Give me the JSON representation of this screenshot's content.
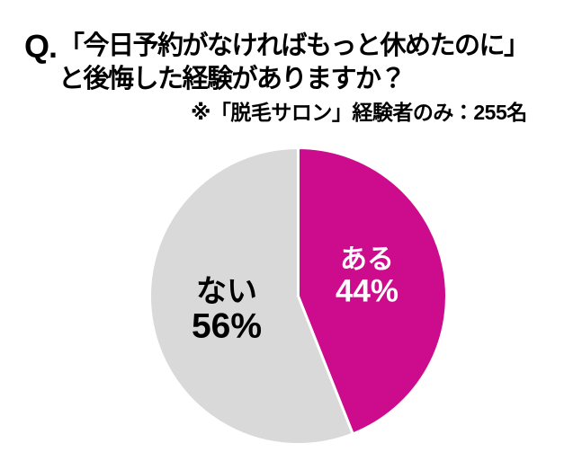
{
  "header": {
    "q_prefix": "Q.",
    "title_line1": "「今日予約がなければもっと休めたのに」",
    "title_line2": "と後悔した経験がありますか？",
    "note": "※「脱毛サロン」経験者のみ：255名"
  },
  "chart_data": {
    "type": "pie",
    "title": "Q.「今日予約がなければもっと休めたのに」と後悔した経験がありますか？",
    "note": "※「脱毛サロン」経験者のみ：255名",
    "sample_size": 255,
    "unit": "%",
    "start_angle_deg": 0,
    "direction": "clockwise",
    "slice_border_color": "#FFFFFF",
    "background_color": "#FFFFFF",
    "text_color": "#000000",
    "slices": [
      {
        "label": "ある",
        "value": 44,
        "pct_text": "44%",
        "color": "#CC0B8D",
        "text_color": "#FFFFFF"
      },
      {
        "label": "ない",
        "value": 56,
        "pct_text": "56%",
        "color": "#D9D9D9",
        "text_color": "#000000"
      }
    ]
  }
}
